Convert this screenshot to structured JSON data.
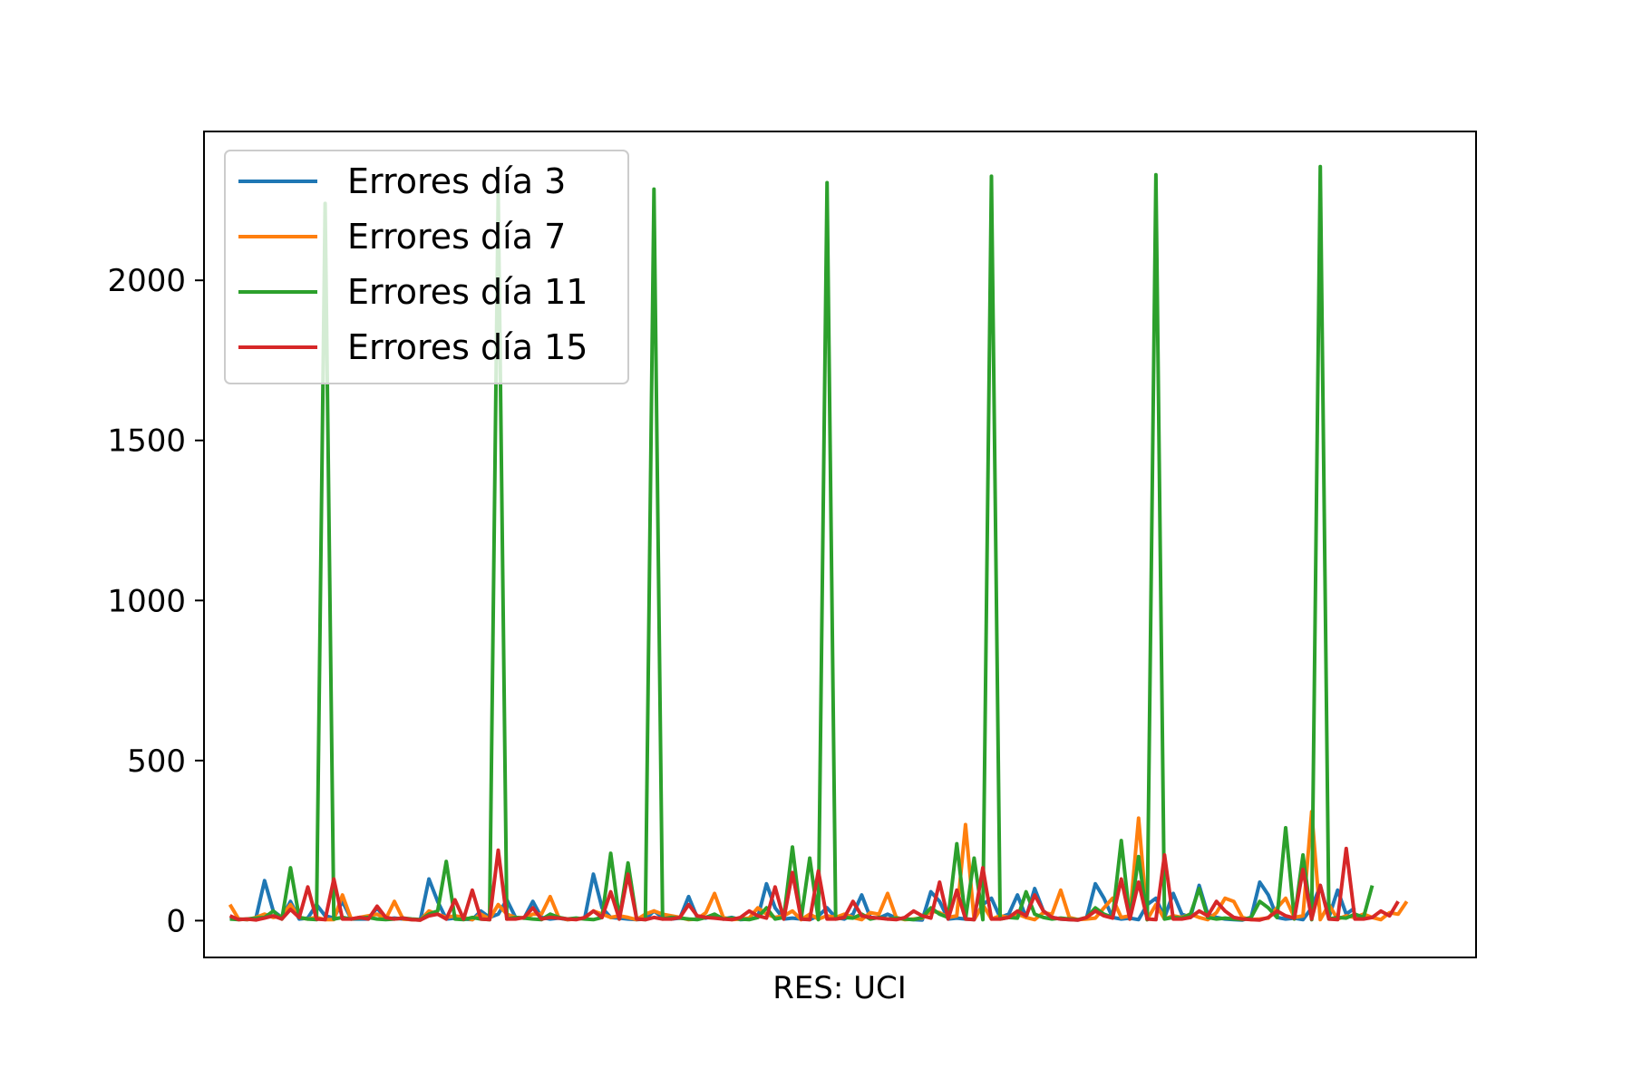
{
  "chart_data": {
    "type": "line",
    "title": "",
    "xlabel": "RES: UCI",
    "ylabel": "",
    "xlim": [
      -3,
      144
    ],
    "ylim": [
      -115,
      2465
    ],
    "yticks": [
      0,
      500,
      1000,
      1500,
      2000
    ],
    "ytick_labels": [
      "0",
      "500",
      "1000",
      "1500",
      "2000"
    ],
    "xticks_visible": false,
    "grid": false,
    "legend_position": "top-left",
    "series": [
      {
        "name": "Errores día 3",
        "color": "#1f77b4",
        "values": [
          10,
          5,
          3,
          8,
          125,
          30,
          10,
          60,
          5,
          8,
          50,
          15,
          8,
          60,
          5,
          5,
          5,
          40,
          5,
          8,
          5,
          3,
          2,
          130,
          60,
          5,
          8,
          5,
          3,
          30,
          10,
          20,
          65,
          10,
          8,
          60,
          10,
          5,
          8,
          3,
          5,
          8,
          145,
          40,
          10,
          8,
          5,
          3,
          5,
          30,
          10,
          5,
          8,
          75,
          10,
          8,
          15,
          5,
          10,
          3,
          5,
          10,
          115,
          40,
          5,
          8,
          5,
          3,
          15,
          40,
          10,
          5,
          20,
          80,
          10,
          8,
          20,
          8,
          5,
          3,
          2,
          90,
          60,
          5,
          8,
          5,
          3,
          50,
          70,
          10,
          20,
          80,
          10,
          100,
          30,
          10,
          5,
          3,
          2,
          10,
          115,
          70,
          10,
          5,
          8,
          3,
          50,
          70,
          10,
          85,
          20,
          10,
          110,
          20,
          10,
          5,
          3,
          2,
          10,
          120,
          80,
          10,
          5,
          8,
          3,
          40,
          110,
          10,
          95,
          20,
          40
        ]
      },
      {
        "name": "Errores día 7",
        "color": "#ff7f0e",
        "values": [
          50,
          5,
          3,
          10,
          20,
          10,
          15,
          50,
          10,
          5,
          10,
          3,
          3,
          80,
          5,
          10,
          15,
          20,
          5,
          60,
          5,
          3,
          2,
          30,
          20,
          10,
          15,
          10,
          3,
          20,
          5,
          50,
          20,
          10,
          8,
          20,
          20,
          75,
          10,
          3,
          5,
          8,
          30,
          20,
          10,
          15,
          10,
          3,
          20,
          30,
          20,
          15,
          10,
          3,
          5,
          25,
          85,
          10,
          3,
          5,
          8,
          40,
          20,
          10,
          15,
          30,
          3,
          20,
          5,
          15,
          10,
          20,
          10,
          3,
          25,
          20,
          85,
          10,
          3,
          5,
          8,
          30,
          25,
          10,
          15,
          300,
          3,
          50,
          5,
          15,
          10,
          20,
          10,
          3,
          25,
          20,
          95,
          10,
          3,
          5,
          8,
          40,
          70,
          10,
          15,
          320,
          3,
          50,
          5,
          15,
          10,
          20,
          10,
          3,
          25,
          70,
          60,
          10,
          3,
          5,
          8,
          40,
          70,
          10,
          15,
          340,
          3,
          50,
          5,
          15,
          10,
          20,
          10,
          3,
          25,
          20,
          60
        ]
      },
      {
        "name": "Errores día 11",
        "color": "#2ca02c",
        "values": [
          5,
          3,
          5,
          8,
          10,
          30,
          5,
          165,
          10,
          5,
          3,
          2240,
          5,
          10,
          5,
          8,
          10,
          5,
          3,
          5,
          8,
          5,
          3,
          20,
          30,
          185,
          5,
          3,
          10,
          5,
          3,
          2270,
          5,
          10,
          8,
          5,
          3,
          20,
          10,
          5,
          8,
          5,
          3,
          10,
          210,
          5,
          180,
          5,
          3,
          2285,
          5,
          10,
          8,
          5,
          3,
          10,
          20,
          5,
          8,
          5,
          3,
          10,
          40,
          5,
          10,
          230,
          5,
          195,
          3,
          2305,
          5,
          10,
          8,
          20,
          5,
          10,
          5,
          8,
          5,
          3,
          10,
          40,
          20,
          10,
          240,
          5,
          195,
          3,
          2325,
          5,
          10,
          8,
          90,
          20,
          10,
          5,
          8,
          5,
          3,
          10,
          40,
          20,
          10,
          250,
          5,
          200,
          3,
          2330,
          5,
          10,
          8,
          20,
          100,
          10,
          5,
          8,
          5,
          3,
          10,
          60,
          40,
          10,
          290,
          5,
          205,
          3,
          2355,
          5,
          10,
          8,
          20,
          10,
          110
        ]
      },
      {
        "name": "Errores día 15",
        "color": "#d62728",
        "values": [
          15,
          3,
          5,
          2,
          8,
          15,
          5,
          35,
          10,
          105,
          5,
          3,
          130,
          5,
          5,
          10,
          5,
          45,
          10,
          5,
          8,
          3,
          2,
          15,
          20,
          5,
          65,
          5,
          95,
          5,
          3,
          220,
          5,
          5,
          10,
          40,
          5,
          10,
          8,
          5,
          3,
          10,
          30,
          10,
          90,
          5,
          145,
          5,
          3,
          10,
          5,
          5,
          10,
          50,
          15,
          10,
          8,
          5,
          3,
          10,
          30,
          15,
          8,
          105,
          5,
          150,
          5,
          3,
          155,
          5,
          5,
          10,
          60,
          15,
          10,
          8,
          5,
          3,
          10,
          30,
          15,
          8,
          120,
          5,
          95,
          5,
          3,
          165,
          5,
          5,
          10,
          30,
          15,
          80,
          30,
          10,
          5,
          3,
          2,
          10,
          30,
          15,
          8,
          130,
          5,
          120,
          5,
          3,
          205,
          5,
          5,
          10,
          30,
          15,
          60,
          30,
          10,
          5,
          3,
          2,
          10,
          30,
          15,
          8,
          160,
          5,
          110,
          5,
          3,
          225,
          5,
          5,
          10,
          30,
          15,
          60
        ]
      }
    ]
  }
}
